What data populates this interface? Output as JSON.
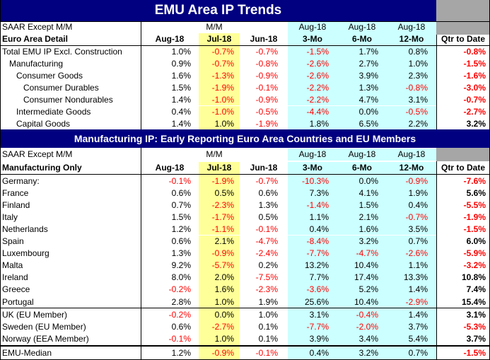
{
  "title": "EMU Area IP Trends",
  "section_title": "Manufacturing IP: Early Reporting Euro Area Countries and EU Members",
  "top_header": {
    "row1": {
      "label": "SAAR Except M/M",
      "mm": "M/M",
      "c3": "Aug-18",
      "c4": "Aug-18",
      "c5": "Aug-18"
    },
    "row2": {
      "label": "Euro Area Detail",
      "cols": [
        "Aug-18",
        "Jul-18",
        "Jun-18",
        "3-Mo",
        "6-Mo",
        "12-Mo",
        "Qtr to Date"
      ]
    }
  },
  "euro_rows": [
    {
      "label": "Total EMU IP Excl. Construction",
      "indent": 0,
      "v": [
        "1.0%",
        "-0.7%",
        "-0.7%",
        "-1.5%",
        "1.7%",
        "0.8%",
        "-0.8%"
      ]
    },
    {
      "label": "Manufacturing",
      "indent": 1,
      "v": [
        "0.9%",
        "-0.7%",
        "-0.8%",
        "-2.6%",
        "2.7%",
        "1.0%",
        "-1.5%"
      ]
    },
    {
      "label": "Consumer Goods",
      "indent": 2,
      "v": [
        "1.6%",
        "-1.3%",
        "-0.9%",
        "-2.6%",
        "3.9%",
        "2.3%",
        "-1.6%"
      ]
    },
    {
      "label": "Consumer Durables",
      "indent": 3,
      "v": [
        "1.5%",
        "-1.9%",
        "-0.1%",
        "-2.2%",
        "1.3%",
        "-0.8%",
        "-3.0%"
      ]
    },
    {
      "label": "Consumer Nondurables",
      "indent": 3,
      "v": [
        "1.4%",
        "-1.0%",
        "-0.9%",
        "-2.2%",
        "4.7%",
        "3.1%",
        "-0.7%"
      ]
    },
    {
      "label": "Intermediate Goods",
      "indent": 2,
      "v": [
        "0.4%",
        "-1.0%",
        "-0.5%",
        "-4.4%",
        "0.0%",
        "-0.5%",
        "-2.7%"
      ]
    },
    {
      "label": "Capital Goods",
      "indent": 2,
      "v": [
        "1.4%",
        "1.0%",
        "-1.9%",
        "1.8%",
        "6.5%",
        "2.2%",
        "3.2%"
      ]
    }
  ],
  "mfg_header": {
    "row1": {
      "label": "SAAR Except M/M",
      "mm": "M/M",
      "c3": "Aug-18",
      "c4": "Aug-18",
      "c5": "Aug-18"
    },
    "row2": {
      "label": "Manufacturing Only",
      "cols": [
        "Aug-18",
        "Jul-18",
        "Jun-18",
        "3-Mo",
        "6-Mo",
        "12-Mo",
        "Qtr to Date"
      ]
    }
  },
  "country_rows": [
    {
      "label": "Germany:",
      "v": [
        "-0.1%",
        "-1.9%",
        "-0.7%",
        "-10.3%",
        "0.0%",
        "-0.9%",
        "-7.6%"
      ]
    },
    {
      "label": "France",
      "v": [
        "0.6%",
        "0.5%",
        "0.6%",
        "7.3%",
        "4.1%",
        "1.9%",
        "5.6%"
      ]
    },
    {
      "label": "Finland",
      "v": [
        "0.7%",
        "-2.3%",
        "1.3%",
        "-1.4%",
        "1.5%",
        "0.4%",
        "-5.5%"
      ]
    },
    {
      "label": "Italy",
      "v": [
        "1.5%",
        "-1.7%",
        "0.5%",
        "1.1%",
        "2.1%",
        "-0.7%",
        "-1.9%"
      ]
    },
    {
      "label": "Netherlands",
      "v": [
        "1.2%",
        "-1.1%",
        "-0.1%",
        "0.4%",
        "1.6%",
        "3.5%",
        "-1.5%"
      ]
    },
    {
      "label": "Spain",
      "v": [
        "0.6%",
        "2.1%",
        "-4.7%",
        "-8.4%",
        "3.2%",
        "0.7%",
        "6.0%"
      ]
    },
    {
      "label": "Luxembourg",
      "v": [
        "1.3%",
        "-0.9%",
        "-2.4%",
        "-7.7%",
        "-4.7%",
        "-2.6%",
        "-5.9%"
      ]
    },
    {
      "label": "Malta",
      "v": [
        "9.2%",
        "-5.7%",
        "0.2%",
        "13.2%",
        "10.4%",
        "1.1%",
        "-3.2%"
      ]
    },
    {
      "label": "Ireland",
      "v": [
        "8.0%",
        "2.0%",
        "-7.5%",
        "7.7%",
        "17.4%",
        "13.3%",
        "10.8%"
      ]
    },
    {
      "label": "Greece",
      "v": [
        "-0.2%",
        "1.6%",
        "-2.3%",
        "-3.6%",
        "5.2%",
        "1.4%",
        "7.4%"
      ]
    },
    {
      "label": "Portugal",
      "v": [
        "2.8%",
        "1.0%",
        "1.9%",
        "25.6%",
        "10.4%",
        "-2.9%",
        "15.4%"
      ]
    }
  ],
  "eu_rows": [
    {
      "label": "UK (EU Member)",
      "v": [
        "-0.2%",
        "0.0%",
        "1.0%",
        "3.1%",
        "-0.4%",
        "1.4%",
        "3.1%"
      ]
    },
    {
      "label": "Sweden (EU Member)",
      "v": [
        "0.6%",
        "-2.7%",
        "0.1%",
        "-7.7%",
        "-2.0%",
        "3.7%",
        "-5.3%"
      ]
    },
    {
      "label": "Norway (EEA Member)",
      "v": [
        "-0.1%",
        "1.0%",
        "0.1%",
        "3.9%",
        "3.4%",
        "5.4%",
        "3.7%"
      ]
    }
  ],
  "median_row": {
    "label": "EMU-Median",
    "v": [
      "1.2%",
      "-0.9%",
      "-0.1%",
      "0.4%",
      "3.2%",
      "0.7%",
      "-1.5%"
    ]
  },
  "colors": {
    "navy": "#000080",
    "yellow": "#ffff99",
    "cyan": "#ccffff",
    "gray": "#a6a6a6",
    "negative": "#ff0000"
  }
}
